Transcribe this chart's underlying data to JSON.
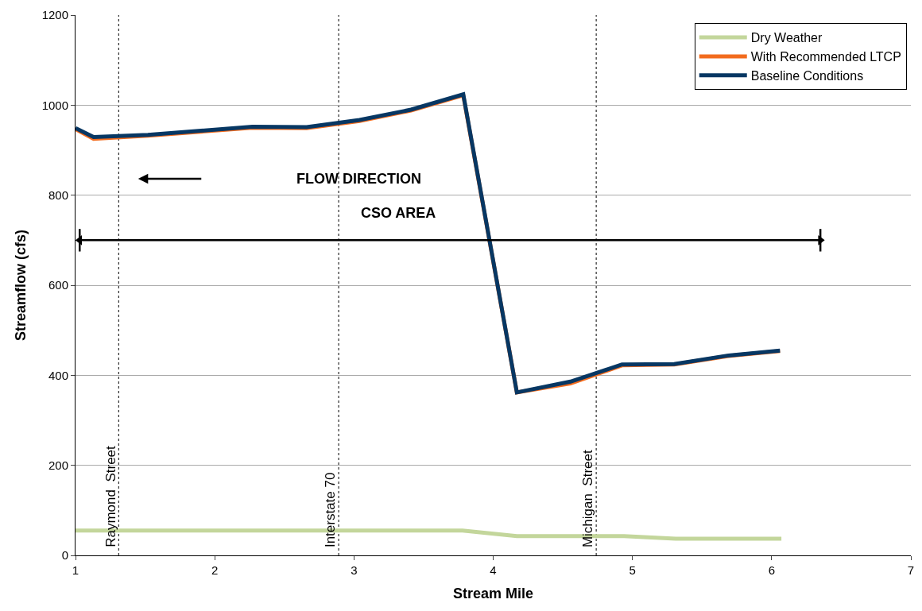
{
  "chart_data": {
    "type": "line",
    "xlabel": "Stream Mile",
    "ylabel": "Streamflow (cfs)",
    "xlim": [
      1,
      7
    ],
    "xticks": [
      1,
      2,
      3,
      4,
      5,
      6,
      7
    ],
    "ylim": [
      0,
      1200
    ],
    "yticks": [
      0,
      200,
      400,
      600,
      800,
      1000,
      1200
    ],
    "grid": "y",
    "legend": "top right",
    "marker": "none",
    "line_style": "solid",
    "series": [
      {
        "name": "Dry Weather",
        "color": "#c3d69b",
        "x": [
          1.0,
          3.78,
          4.17,
          4.94,
          5.31,
          6.07
        ],
        "values": [
          55,
          55,
          43,
          43,
          37,
          37
        ]
      },
      {
        "name": "With Recommended LTCP",
        "color": "#f26b1d",
        "x": [
          1.0,
          1.13,
          1.52,
          2.27,
          2.66,
          3.04,
          3.41,
          3.785,
          4.17,
          4.555,
          4.925,
          5.3,
          5.69,
          6.06
        ],
        "values": [
          947,
          925,
          932,
          950,
          949,
          965,
          988,
          1022,
          362,
          382,
          422,
          424,
          443,
          454
        ]
      },
      {
        "name": "Baseline Conditions",
        "color": "#073763",
        "x": [
          1.0,
          1.13,
          1.52,
          2.27,
          2.66,
          3.04,
          3.41,
          3.785,
          4.17,
          4.555,
          4.925,
          5.3,
          5.69,
          6.06
        ],
        "values": [
          949,
          929,
          934,
          952,
          951,
          967,
          990,
          1024,
          362,
          386,
          424,
          425,
          444,
          455
        ]
      },
      {
        "name": "CSO AREA",
        "color": "#000000",
        "x": [
          1.03,
          6.35
        ],
        "values": [
          700,
          700
        ],
        "errors": [
          25,
          25
        ],
        "marker": "triangle"
      }
    ],
    "ref_lines": [
      {
        "axis": "x",
        "value": 1.31,
        "label": "Raymond  Street",
        "color": "#000000",
        "line_style": "dotted"
      },
      {
        "axis": "x",
        "value": 2.89,
        "label": "Interstate 70",
        "color": "#000000",
        "line_style": "dotted"
      },
      {
        "axis": "x",
        "value": 4.74,
        "label": "Michigan  Street",
        "color": "#000000",
        "line_style": "dotted"
      }
    ],
    "annotations": [
      "FLOW DIRECTION"
    ]
  }
}
